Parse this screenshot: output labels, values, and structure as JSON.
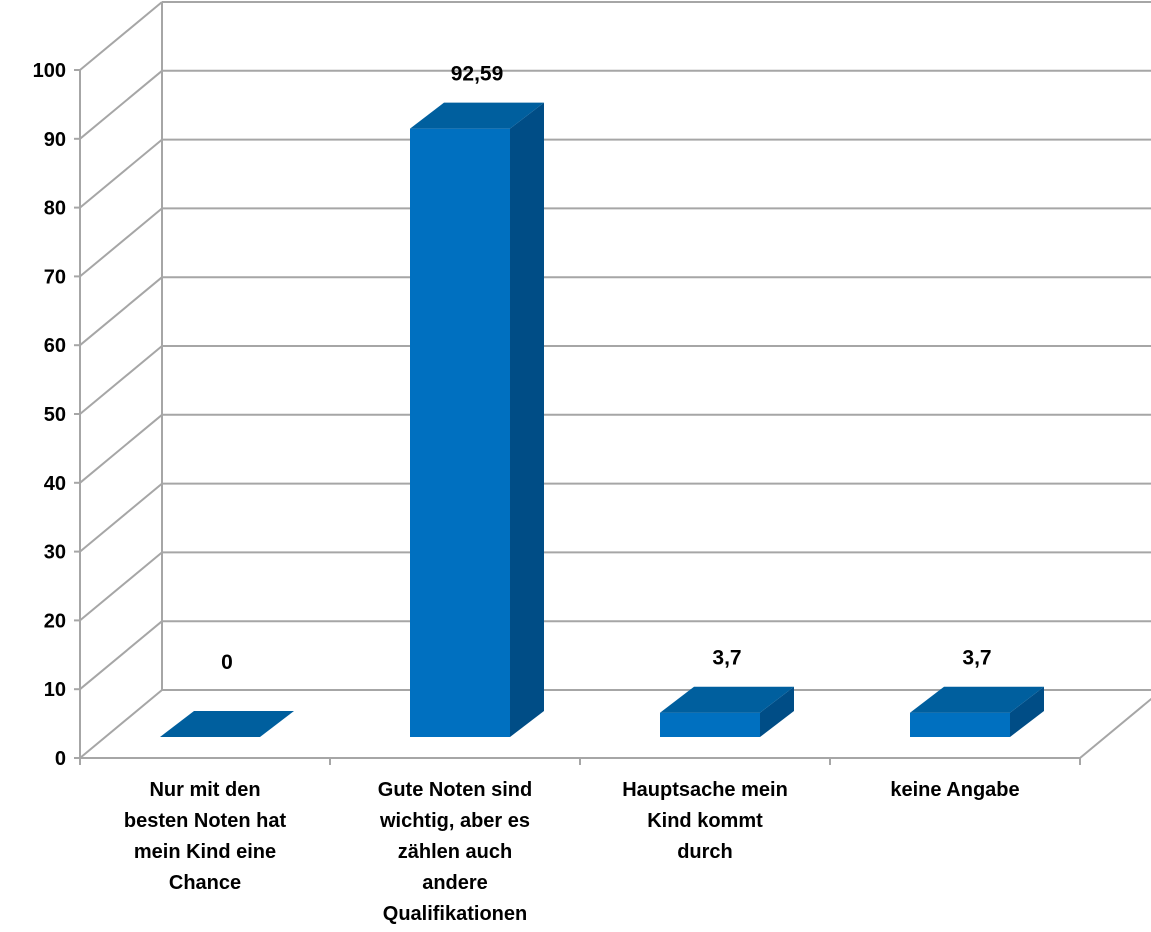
{
  "chart_data": {
    "type": "bar",
    "title": "",
    "xlabel": "",
    "ylabel": "",
    "categories": [
      [
        "Nur mit den",
        "besten Noten hat",
        "mein Kind eine",
        "Chance"
      ],
      [
        "Gute Noten sind",
        "wichtig, aber es",
        "zählen auch",
        "andere",
        "Qualifikationen"
      ],
      [
        "Hauptsache mein",
        "Kind kommt",
        "durch"
      ],
      [
        "keine Angabe"
      ]
    ],
    "values": [
      0,
      92.59,
      3.7,
      3.7
    ],
    "data_labels": [
      "0",
      "92,59",
      "3,7",
      "3,7"
    ],
    "yticks": [
      "0",
      "10",
      "20",
      "30",
      "40",
      "50",
      "60",
      "70",
      "80",
      "90",
      "100"
    ],
    "ylim": [
      0,
      100
    ],
    "grid": true,
    "legend": "none",
    "colors": {
      "bar_front": "#0070C0",
      "bar_top": "#005F9E",
      "bar_side": "#004D86",
      "grid": "#A6A6A6"
    }
  }
}
